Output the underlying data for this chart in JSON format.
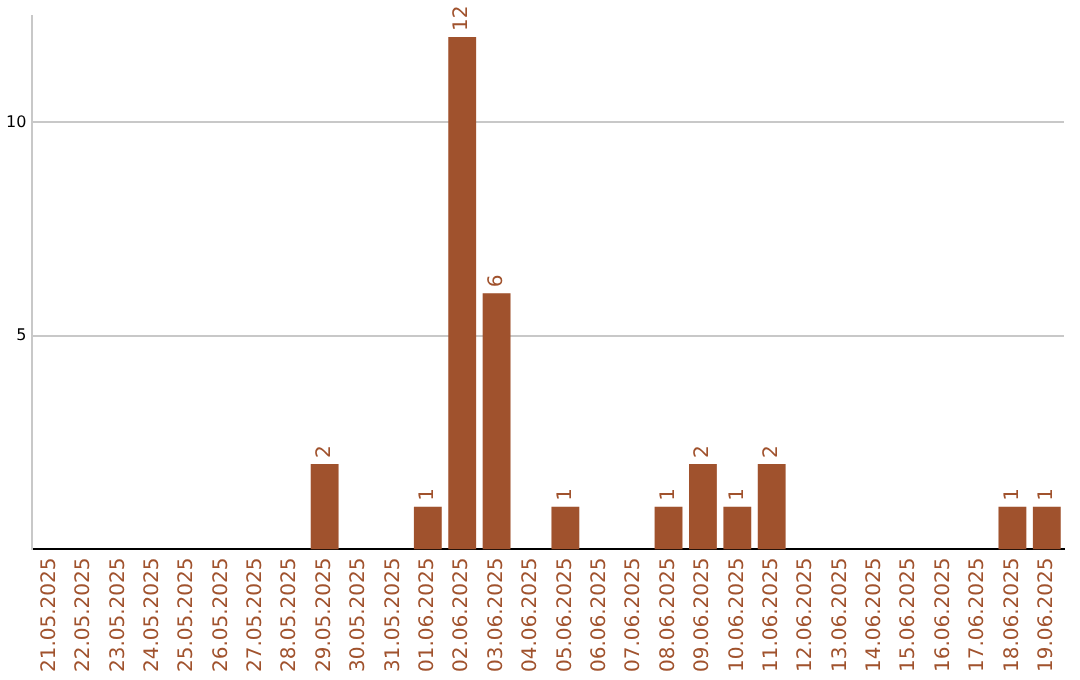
{
  "chart_data": {
    "type": "bar",
    "categories": [
      "21.05.2025",
      "22.05.2025",
      "23.05.2025",
      "24.05.2025",
      "25.05.2025",
      "26.05.2025",
      "27.05.2025",
      "28.05.2025",
      "29.05.2025",
      "30.05.2025",
      "31.05.2025",
      "01.06.2025",
      "02.06.2025",
      "03.06.2025",
      "04.06.2025",
      "05.06.2025",
      "06.06.2025",
      "07.06.2025",
      "08.06.2025",
      "09.06.2025",
      "10.06.2025",
      "11.06.2025",
      "12.06.2025",
      "13.06.2025",
      "14.06.2025",
      "15.06.2025",
      "16.06.2025",
      "17.06.2025",
      "18.06.2025",
      "19.06.2025"
    ],
    "values": [
      0,
      0,
      0,
      0,
      0,
      0,
      0,
      0,
      2,
      0,
      0,
      1,
      12,
      6,
      0,
      1,
      0,
      0,
      1,
      2,
      1,
      2,
      0,
      0,
      0,
      0,
      0,
      0,
      1,
      1
    ],
    "value_labels": [
      null,
      null,
      null,
      null,
      null,
      null,
      null,
      null,
      "2",
      null,
      null,
      "1",
      "12",
      "6",
      null,
      "1",
      null,
      null,
      "1",
      "2",
      "1",
      "2",
      null,
      null,
      null,
      null,
      null,
      null,
      "1",
      "1"
    ],
    "color": "#a0522d",
    "ylim": [
      0,
      12.5
    ],
    "yticks": [
      5,
      10
    ],
    "grid": "y",
    "legend": false
  }
}
